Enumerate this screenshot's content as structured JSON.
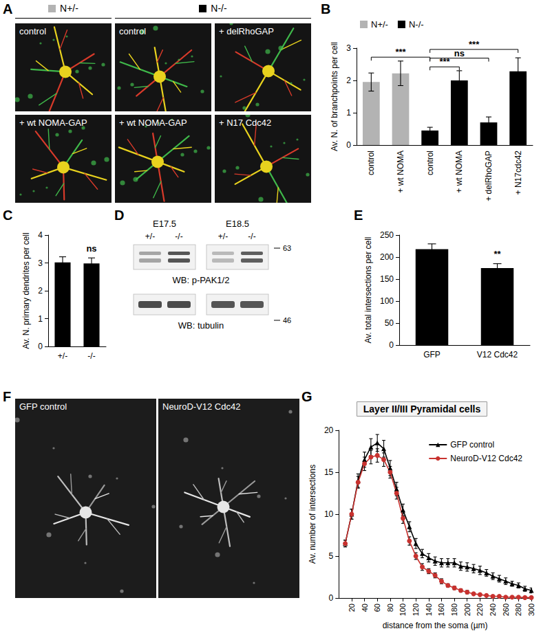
{
  "panel_labels": [
    "A",
    "B",
    "C",
    "D",
    "E",
    "F",
    "G"
  ],
  "panel_a": {
    "groups": [
      "N+/-",
      "N-/-"
    ],
    "colors": [
      "#b3b3b3",
      "#000000"
    ],
    "images": [
      "control",
      "control",
      "+ delRhoGAP",
      "+ wt NOMA-GAP",
      "+ wt NOMA-GAP",
      "+ N17 Cdc42"
    ]
  },
  "panel_d": {
    "timepoints": [
      "E17.5",
      "E18.5"
    ],
    "lanes": [
      "+/-",
      "-/-",
      "+/-",
      "-/-"
    ],
    "blots": [
      {
        "label": "WB: p-PAK1/2",
        "marker": 63,
        "intensities": [
          0.45,
          0.85,
          0.35,
          0.8
        ]
      },
      {
        "label": "WB: tubulin",
        "marker": 46,
        "intensities": [
          0.9,
          0.9,
          0.85,
          0.85
        ]
      }
    ]
  },
  "panel_f": {
    "images": [
      "GFP control",
      "NeuroD-V12 Cdc42"
    ]
  },
  "chart_data": [
    {
      "panel": "B",
      "type": "bar",
      "y_label": "Av. N. of branchpoints per cell",
      "categories": [
        "control",
        "+ wt NOMA",
        "control",
        "+ wt NOMA",
        "+ delRhoGAP",
        "+ N17cdc42"
      ],
      "series": [
        {
          "name": "N+/-",
          "color": "#b3b3b3",
          "values": [
            1.95,
            2.22,
            null,
            null,
            null,
            null
          ],
          "errors": [
            0.28,
            0.38,
            null,
            null,
            null,
            null
          ]
        },
        {
          "name": "N-/-",
          "color": "#000000",
          "values": [
            null,
            null,
            0.45,
            2.0,
            0.7,
            2.28
          ],
          "errors": [
            null,
            null,
            0.1,
            0.3,
            0.17,
            0.42
          ]
        }
      ],
      "annotations": [
        {
          "from": 0,
          "to": 2,
          "label": "***"
        },
        {
          "from": 2,
          "to": 3,
          "label": "***"
        },
        {
          "from": 2,
          "to": 4,
          "label": "ns"
        },
        {
          "from": 2,
          "to": 5,
          "label": "***"
        }
      ],
      "ylim": [
        0,
        3
      ],
      "yticks": [
        0,
        1,
        2,
        3
      ],
      "grid": false,
      "legend": "upper left"
    },
    {
      "panel": "C",
      "type": "bar",
      "y_label": "Av. N. primary dendrites per cell",
      "categories": [
        "+/-",
        "-/-"
      ],
      "values": [
        3.02,
        2.98
      ],
      "errors": [
        0.2,
        0.2
      ],
      "color": "#000000",
      "annotations": [
        {
          "at": 1,
          "label": "ns"
        }
      ],
      "ylim": [
        0,
        4
      ],
      "yticks": [
        0,
        1,
        2,
        3,
        4
      ],
      "grid": false
    },
    {
      "panel": "E",
      "type": "bar",
      "y_label": "Av. total intersections per cell",
      "categories": [
        "GFP",
        "V12 Cdc42"
      ],
      "values": [
        218,
        175
      ],
      "errors": [
        12,
        10
      ],
      "color": "#000000",
      "annotations": [
        {
          "at": 1,
          "label": "**"
        }
      ],
      "ylim": [
        0,
        250
      ],
      "yticks": [
        0,
        50,
        100,
        150,
        200,
        250
      ],
      "grid": false
    },
    {
      "panel": "G",
      "type": "line",
      "title": "Layer II/III Pyramidal cells",
      "x_label": "distance from the soma (µm)",
      "y_label": "Av. number of intersections",
      "x": [
        10,
        20,
        30,
        40,
        50,
        60,
        70,
        80,
        90,
        100,
        110,
        120,
        130,
        140,
        150,
        160,
        170,
        180,
        190,
        200,
        210,
        220,
        230,
        240,
        250,
        260,
        270,
        280,
        290,
        300
      ],
      "series": [
        {
          "name": "GFP control",
          "color": "#000000",
          "marker": "triangle",
          "line_style": "solid",
          "values": [
            6.5,
            10,
            14,
            16.5,
            18,
            18.5,
            17.8,
            15.5,
            13,
            10.5,
            8.5,
            6.5,
            5.3,
            4.8,
            4.4,
            4.2,
            4.2,
            4.2,
            3.8,
            3.7,
            3.5,
            3.3,
            3,
            2.6,
            2.3,
            2,
            1.7,
            1.5,
            1.1,
            0.9
          ],
          "errors": [
            0.4,
            0.6,
            0.8,
            0.9,
            1.0,
            1.0,
            1.0,
            0.9,
            0.8,
            0.7,
            0.6,
            0.6,
            0.5,
            0.5,
            0.5,
            0.5,
            0.5,
            0.5,
            0.5,
            0.5,
            0.5,
            0.5,
            0.4,
            0.4,
            0.4,
            0.4,
            0.3,
            0.3,
            0.3,
            0.3
          ]
        },
        {
          "name": "NeuroD-V12 Cdc42",
          "color": "#c8322f",
          "marker": "circle",
          "line_style": "solid",
          "values": [
            6.5,
            10,
            13.8,
            16,
            16.8,
            17,
            16.5,
            15,
            12.5,
            9.5,
            6.8,
            5,
            3.7,
            3.2,
            2.7,
            2,
            1.5,
            1.2,
            0.9,
            0.7,
            0.5,
            0.4,
            0.3,
            0.2,
            0.2,
            0.1,
            0.1,
            0.1,
            0.05,
            0.05
          ],
          "errors": [
            0.4,
            0.6,
            0.7,
            0.8,
            0.8,
            0.8,
            0.8,
            0.7,
            0.7,
            0.6,
            0.5,
            0.4,
            0.4,
            0.3,
            0.3,
            0.3,
            0.2,
            0.2,
            0.2,
            0.2,
            0.1,
            0.1,
            0.1,
            0.1,
            0.1,
            0.1,
            0.05,
            0.05,
            0.05,
            0.05
          ]
        }
      ],
      "xlim": [
        0,
        300
      ],
      "xticks": [
        20,
        40,
        60,
        80,
        100,
        120,
        140,
        160,
        180,
        200,
        220,
        240,
        260,
        280,
        300
      ],
      "ylim": [
        0,
        20
      ],
      "yticks": [
        0,
        5,
        10,
        15,
        20
      ],
      "grid": false,
      "legend": "upper right"
    }
  ]
}
